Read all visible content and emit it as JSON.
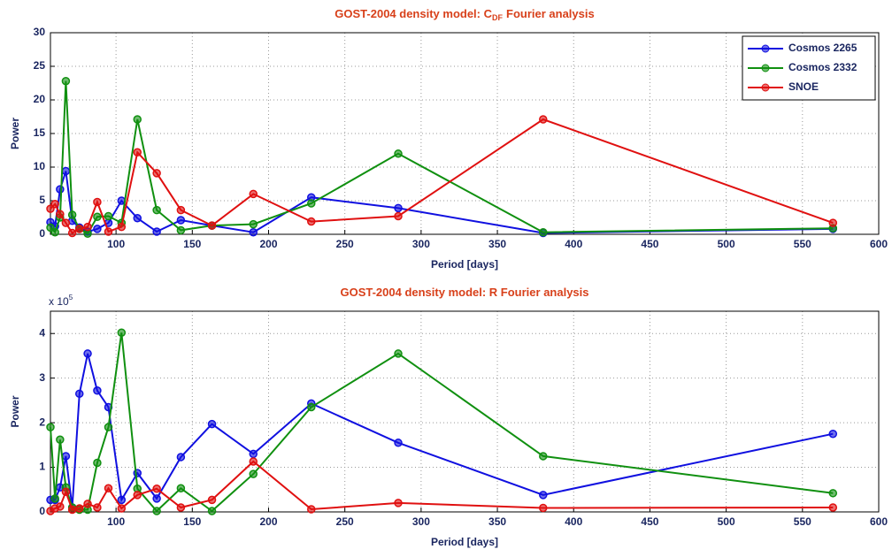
{
  "chart_data": [
    {
      "type": "line",
      "title": "GOST-2004 density model: C",
      "title_subscript": "DF",
      "title_suffix": "Fourier analysis",
      "x_label": "Period [days]",
      "y_label": "Power",
      "x": [
        57,
        60,
        63.3,
        67.1,
        71.3,
        76,
        81.4,
        87.7,
        95,
        103.6,
        114,
        126.7,
        142.5,
        162.9,
        190,
        228,
        285,
        380,
        570
      ],
      "xlim": [
        57,
        600
      ],
      "xticks": [
        100,
        150,
        200,
        250,
        300,
        350,
        400,
        450,
        500,
        550,
        600
      ],
      "ylim": [
        0,
        30
      ],
      "yticks": [
        0,
        5,
        10,
        15,
        20,
        25,
        30
      ],
      "grid": true,
      "legend": "upper-right",
      "series": [
        {
          "name": "Cosmos 2265",
          "color": "#1010e0",
          "values": [
            1.8,
            1.2,
            6.7,
            9.4,
            2.0,
            1.0,
            0.4,
            0.8,
            1.7,
            5.0,
            2.4,
            0.4,
            2.1,
            1.3,
            0.3,
            5.5,
            3.9,
            0.2,
            0.8
          ]
        },
        {
          "name": "Cosmos 2332",
          "color": "#109010",
          "values": [
            1.0,
            0.3,
            2.5,
            22.8,
            2.9,
            0.8,
            0.1,
            2.6,
            2.7,
            1.7,
            17.1,
            3.6,
            0.6,
            1.3,
            1.5,
            4.6,
            12.0,
            0.3,
            0.9
          ]
        },
        {
          "name": "SNOE",
          "color": "#e01010",
          "values": [
            3.8,
            4.5,
            3.0,
            1.7,
            0.2,
            0.8,
            1.1,
            4.8,
            0.4,
            1.1,
            12.2,
            9.1,
            3.6,
            1.3,
            6.0,
            1.9,
            2.7,
            17.1,
            1.7
          ]
        }
      ]
    },
    {
      "type": "line",
      "title": "GOST-2004 density model: R Fourier analysis",
      "x_label": "Period [days]",
      "y_label": "Power",
      "y_multiplier": "x 10",
      "y_multiplier_exponent": "5",
      "x": [
        57,
        60,
        63.3,
        67.1,
        71.3,
        76,
        81.4,
        87.7,
        95,
        103.6,
        114,
        126.7,
        142.5,
        162.9,
        190,
        228,
        285,
        380,
        570
      ],
      "xlim": [
        57,
        600
      ],
      "xticks": [
        100,
        150,
        200,
        250,
        300,
        350,
        400,
        450,
        500,
        550,
        600
      ],
      "ylim": [
        0,
        4.5
      ],
      "yticks": [
        0,
        1,
        2,
        3,
        4
      ],
      "grid": true,
      "series": [
        {
          "name": "Cosmos 2265",
          "color": "#1010e0",
          "values": [
            0.27,
            0.27,
            0.55,
            1.25,
            0.1,
            2.65,
            3.55,
            2.72,
            2.35,
            0.27,
            0.87,
            0.3,
            1.23,
            1.97,
            1.3,
            2.43,
            1.55,
            0.38,
            1.75
          ]
        },
        {
          "name": "Cosmos 2332",
          "color": "#109010",
          "values": [
            1.9,
            0.3,
            1.62,
            0.55,
            0.1,
            0.05,
            0.05,
            1.1,
            1.9,
            4.02,
            0.52,
            0.02,
            0.53,
            0.02,
            0.85,
            2.35,
            3.55,
            1.25,
            0.42
          ]
        },
        {
          "name": "SNOE",
          "color": "#e01010",
          "values": [
            0.02,
            0.08,
            0.12,
            0.45,
            0.05,
            0.08,
            0.18,
            0.1,
            0.53,
            0.08,
            0.38,
            0.52,
            0.1,
            0.27,
            1.13,
            0.06,
            0.2,
            0.09,
            0.1
          ]
        }
      ]
    }
  ]
}
